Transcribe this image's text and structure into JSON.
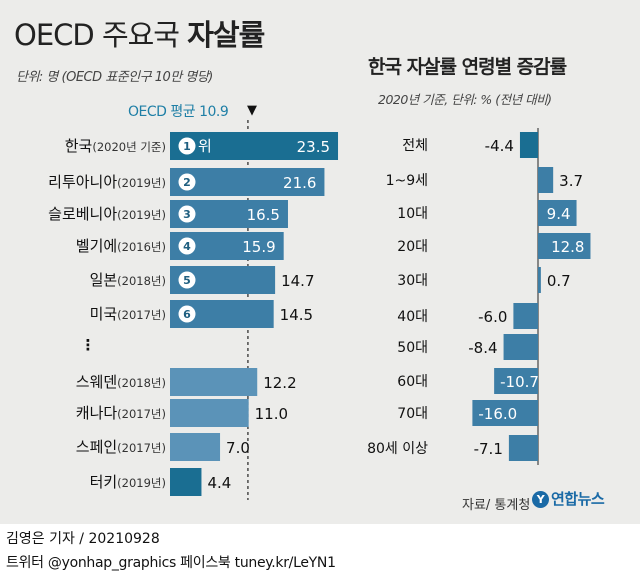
{
  "header": {
    "title_part1": "OECD 주요국 ",
    "title_part2": "자살률",
    "unit": "단위: 명 (OECD 표준인구 10만 명당)",
    "right_title": "한국 자살률 연령별 증감률",
    "right_unit": "2020년 기준, 단위: % (전년 대비)",
    "oecd_avg_label": "OECD 평균 10.9",
    "oecd_avg_marker": "▼"
  },
  "chart_data": [
    {
      "type": "bar",
      "orientation": "horizontal",
      "title": "OECD 주요국 자살률",
      "unit": "단위: 명 (OECD 표준인구 10만 명당)",
      "reference_line": {
        "label": "OECD 평균 10.9",
        "value": 10.9
      },
      "ellipsis": "⋮",
      "categories": [
        {
          "name": "한국",
          "year": "(2020년 기준)",
          "value": 23.5,
          "rank": "1",
          "rank_suffix": "위"
        },
        {
          "name": "리투아니아",
          "year": "(2019년)",
          "value": 21.6,
          "rank": "2"
        },
        {
          "name": "슬로베니아",
          "year": "(2019년)",
          "value": 16.5,
          "rank": "3"
        },
        {
          "name": "벨기에",
          "year": "(2016년)",
          "value": 15.9,
          "rank": "4"
        },
        {
          "name": "일본",
          "year": "(2018년)",
          "value": 14.7,
          "rank": "5"
        },
        {
          "name": "미국",
          "year": "(2017년)",
          "value": 14.5,
          "rank": "6"
        },
        {
          "name": "스웨덴",
          "year": "(2018년)",
          "value": 12.2
        },
        {
          "name": "캐나다",
          "year": "(2017년)",
          "value": 11.0
        },
        {
          "name": "스페인",
          "year": "(2017년)",
          "value": 7.0
        },
        {
          "name": "터키",
          "year": "(2019년)",
          "value": 4.4
        }
      ],
      "colors": {
        "highlight": "#1a6e92",
        "default": "#3d7ea6",
        "light": "#5b93b8"
      }
    },
    {
      "type": "bar",
      "orientation": "horizontal",
      "title": "한국 자살률 연령별 증감률",
      "unit": "2020년 기준, 단위: % (전년 대비)",
      "categories": [
        "전체",
        "1~9세",
        "10대",
        "20대",
        "30대",
        "40대",
        "50대",
        "60대",
        "70대",
        "80세 이상"
      ],
      "values": [
        -4.4,
        3.7,
        9.4,
        12.8,
        0.7,
        -6.0,
        -8.4,
        -10.7,
        -16.0,
        -7.1
      ],
      "labels": [
        "-4.4",
        "3.7",
        "9.4",
        "12.8",
        "0.7",
        "-6.0",
        "-8.4",
        "-10.7",
        "-16.0",
        "-7.1"
      ],
      "colors": {
        "highlight": "#1a6e92",
        "default": "#3d7ea6"
      }
    }
  ],
  "footer": {
    "source": "자료/ 통계청",
    "logo_text": "연합뉴스",
    "logo_glyph": "Y",
    "reporter": "김영은 기자 / 20210928",
    "contact": "트위터 @yonhap_graphics  페이스북 tuney.kr/LeYN1"
  }
}
